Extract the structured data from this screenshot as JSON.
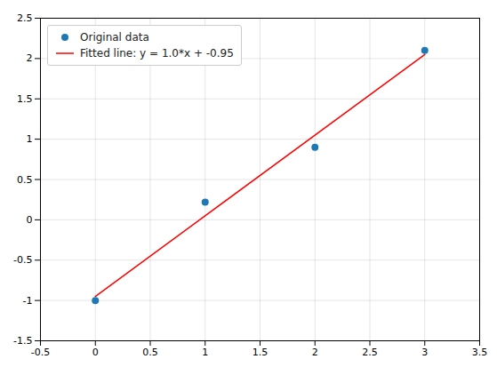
{
  "chart_data": {
    "type": "scatter",
    "series": [
      {
        "name": "Original data",
        "type": "scatter",
        "color": "#1f77b4",
        "marker": "o",
        "x": [
          0,
          1,
          2,
          3
        ],
        "values": [
          -1.0,
          0.22,
          0.9,
          2.1
        ]
      },
      {
        "name": "Fitted line: y = 1.0*x + -0.95",
        "type": "line",
        "color": "red",
        "x": [
          0,
          3
        ],
        "values": [
          -0.95,
          2.05
        ]
      }
    ],
    "xlim": [
      -0.5,
      3.5
    ],
    "xticks": [
      -0.5,
      0,
      0.5,
      1,
      1.5,
      2,
      2.5,
      3,
      3.5
    ],
    "ylim": [
      -1.5,
      2.5
    ],
    "yticks": [
      -1.5,
      -1,
      -0.5,
      0,
      0.5,
      1,
      1.5,
      2,
      2.5
    ],
    "grid": true,
    "legend": "upper left"
  }
}
